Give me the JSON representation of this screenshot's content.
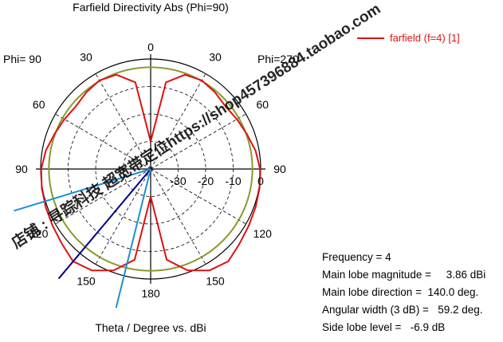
{
  "chart_data": {
    "type": "polar",
    "title": "Farfield Directivity Abs (Phi=90)",
    "xlabel": "Theta / Degree vs. dBi",
    "left_label": "Phi= 90",
    "right_label": "Phi=270",
    "angle_labels": {
      "top": "0",
      "bottom": "180",
      "left": [
        "30",
        "60",
        "90",
        "120",
        "150"
      ],
      "right": [
        "30",
        "60",
        "90",
        "120",
        "150"
      ]
    },
    "radial_ticks": [
      "-30",
      "-20",
      "-10",
      "0"
    ],
    "r_range_db": [
      -40,
      0
    ],
    "legend": {
      "label": "farfield (f=4) [1]",
      "color": "#dd1111",
      "position": "top-right"
    },
    "grid": true,
    "reference_circle": {
      "level_db": -3,
      "color": "#8a9a2a"
    },
    "series": [
      {
        "name": "farfield (f=4) [1]",
        "color": "#dd1111",
        "theta_deg": [
          0,
          10,
          20,
          30,
          40,
          50,
          60,
          70,
          80,
          90,
          100,
          110,
          120,
          130,
          140,
          150,
          160,
          170,
          180
        ],
        "directivity_db": [
          -30,
          -8,
          -3.5,
          -2.8,
          -3.6,
          -4.5,
          -3.8,
          -2.8,
          -1.3,
          -0.2,
          0.2,
          0.6,
          1.2,
          2.2,
          3.86,
          2.6,
          -0.8,
          -6.5,
          -30
        ]
      }
    ],
    "markers": [
      {
        "name": "main lobe direction",
        "theta_deg": 140,
        "color": "#00008b"
      },
      {
        "name": "3 dB limit 1",
        "theta_deg": 107,
        "color": "#1e90d0"
      },
      {
        "name": "3 dB limit 2",
        "theta_deg": 166,
        "color": "#1e90d0"
      }
    ]
  },
  "info": {
    "frequency": "Frequency = 4",
    "main_lobe_magnitude": "Main lobe magnitude =     3.86 dBi",
    "main_lobe_direction": "Main lobe direction =  140.0 deg.",
    "angular_width": "Angular width (3 dB) =   59.2 deg.",
    "side_lobe_level": "Side lobe level =   -6.9 dB"
  },
  "watermark": "店铺 : 寻踪科技 超宽带定位https://shop457396884.taobao.com"
}
